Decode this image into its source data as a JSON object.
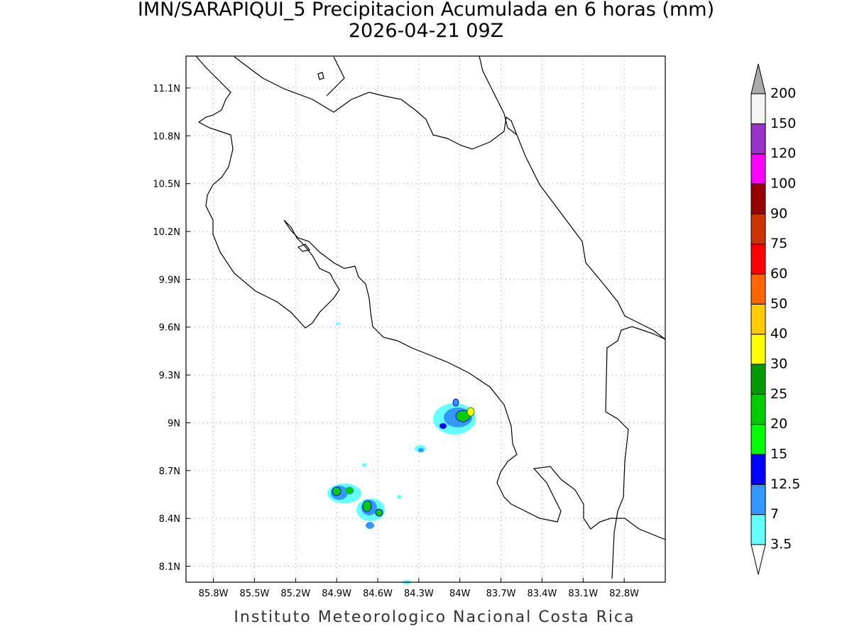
{
  "title": "IMN/SARAPIQUI_5 Precipitacion Acumulada en 6 horas (mm)",
  "subtitle": "2026-04-21 09Z",
  "footer": "Instituto Meteorologico Nacional Costa Rica",
  "map": {
    "xlim": [
      -86.0,
      -82.5
    ],
    "ylim": [
      8.0,
      11.3
    ],
    "xticks": [
      {
        "value": -85.8,
        "label": "85.8W"
      },
      {
        "value": -85.5,
        "label": "85.5W"
      },
      {
        "value": -85.2,
        "label": "85.2W"
      },
      {
        "value": -84.9,
        "label": "84.9W"
      },
      {
        "value": -84.6,
        "label": "84.6W"
      },
      {
        "value": -84.3,
        "label": "84.3W"
      },
      {
        "value": -84.0,
        "label": "84W"
      },
      {
        "value": -83.7,
        "label": "83.7W"
      },
      {
        "value": -83.4,
        "label": "83.4W"
      },
      {
        "value": -83.1,
        "label": "83.1W"
      },
      {
        "value": -82.8,
        "label": "82.8W"
      }
    ],
    "yticks": [
      {
        "value": 11.1,
        "label": "11.1N"
      },
      {
        "value": 10.8,
        "label": "10.8N"
      },
      {
        "value": 10.5,
        "label": "10.5N"
      },
      {
        "value": 10.2,
        "label": "10.2N"
      },
      {
        "value": 9.9,
        "label": "9.9N"
      },
      {
        "value": 9.6,
        "label": "9.6N"
      },
      {
        "value": 9.3,
        "label": "9.3N"
      },
      {
        "value": 9.0,
        "label": "9N"
      },
      {
        "value": 8.7,
        "label": "8.7N"
      },
      {
        "value": 8.4,
        "label": "8.4N"
      },
      {
        "value": 8.1,
        "label": "8.1N"
      }
    ],
    "grid": true
  },
  "colorbar": {
    "labels": [
      3.5,
      7,
      12.5,
      15,
      20,
      25,
      30,
      40,
      50,
      60,
      75,
      90,
      100,
      120,
      150,
      200
    ],
    "colors": [
      "#ffffff",
      "#66ffff",
      "#3399ff",
      "#0000ff",
      "#00ff00",
      "#00cc00",
      "#009900",
      "#ffff00",
      "#ffcc00",
      "#ff6600",
      "#ff0000",
      "#cc3300",
      "#990000",
      "#ff00ff",
      "#9933cc",
      "#f5f5f5",
      "#aaaaaa"
    ]
  }
}
